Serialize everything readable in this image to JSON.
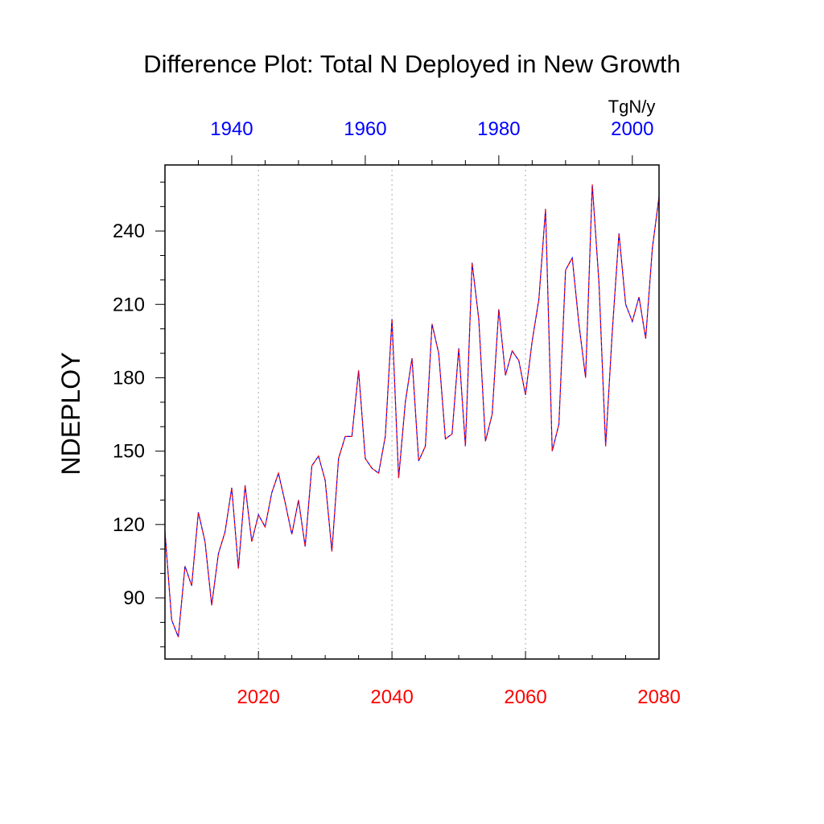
{
  "chart_data": {
    "type": "line",
    "title": "Difference Plot: Total N Deployed in New Growth",
    "ylabel": "NDEPLOY",
    "units_label": "TgN/y",
    "ylim": [
      65,
      267
    ],
    "y_ticks": [
      90,
      120,
      150,
      180,
      210,
      240
    ],
    "x_bottom": {
      "range": [
        2006,
        2080
      ],
      "ticks": [
        2020,
        2040,
        2060,
        2080
      ],
      "tick_labels": [
        "2020",
        "2040",
        "2060",
        "2080"
      ],
      "color": "#ff0000"
    },
    "x_top": {
      "range": [
        1930,
        2004
      ],
      "ticks": [
        1940,
        1960,
        1980,
        2000
      ],
      "tick_labels": [
        "1940",
        "1960",
        "1980",
        "2000"
      ],
      "color": "#0000ff"
    },
    "grid": "vertical dotted at major bottom ticks",
    "series": [
      {
        "color_a": "#0000ff",
        "color_b": "#ff0000",
        "style": "dashed",
        "x": [
          2006,
          2007,
          2008,
          2009,
          2010,
          2011,
          2012,
          2013,
          2014,
          2015,
          2016,
          2017,
          2018,
          2019,
          2020,
          2021,
          2022,
          2023,
          2024,
          2025,
          2026,
          2027,
          2028,
          2029,
          2030,
          2031,
          2032,
          2033,
          2034,
          2035,
          2036,
          2037,
          2038,
          2039,
          2040,
          2041,
          2042,
          2043,
          2044,
          2045,
          2046,
          2047,
          2048,
          2049,
          2050,
          2051,
          2052,
          2053,
          2054,
          2055,
          2056,
          2057,
          2058,
          2059,
          2060,
          2061,
          2062,
          2063,
          2064,
          2065,
          2066,
          2067,
          2068,
          2069,
          2070,
          2071,
          2072,
          2073,
          2074,
          2075,
          2076,
          2077,
          2078,
          2079,
          2080
        ],
        "values": [
          117,
          81,
          74,
          103,
          95,
          125,
          113,
          87,
          108,
          117,
          135,
          102,
          136,
          113,
          124,
          119,
          133,
          141,
          129,
          116,
          130,
          111,
          144,
          148,
          138,
          109,
          147,
          156,
          156,
          183,
          147,
          143,
          141,
          156,
          204,
          139,
          170,
          188,
          146,
          152,
          202,
          190,
          155,
          157,
          192,
          152,
          227,
          204,
          154,
          165,
          208,
          181,
          191,
          187,
          173,
          195,
          212,
          249,
          150,
          161,
          224,
          229,
          202,
          180,
          259,
          219,
          152,
          199,
          239,
          210,
          203,
          213,
          196,
          233,
          254
        ]
      }
    ]
  }
}
